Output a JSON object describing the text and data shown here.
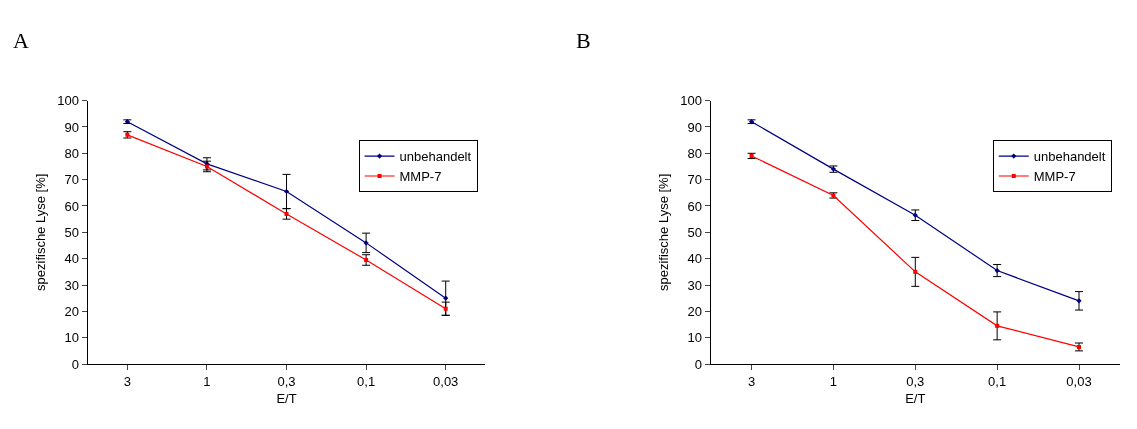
{
  "chart_data": [
    {
      "type": "line",
      "title": "A",
      "xlabel": "E/T",
      "ylabel": "spezifische Lyse [%]",
      "categories": [
        "3",
        "1",
        "0,3",
        "0,1",
        "0,03"
      ],
      "ylim": [
        0,
        100
      ],
      "yticks": [
        0,
        10,
        20,
        30,
        40,
        50,
        60,
        70,
        80,
        90,
        100
      ],
      "grid": false,
      "legend": "top right",
      "line_style": "solid",
      "series": [
        {
          "name": "unbehandelt",
          "color": "#000080",
          "marker": "diamond",
          "values": [
            92,
            76,
            65.5,
            46,
            25
          ],
          "errors": [
            0.7,
            2.3,
            6.5,
            3.7,
            6.5
          ]
        },
        {
          "name": "MMP-7",
          "color": "#ff0000",
          "marker": "square",
          "values": [
            87,
            75,
            57,
            39.5,
            21
          ],
          "errors": [
            1.2,
            2,
            2,
            2,
            2.5
          ]
        }
      ]
    },
    {
      "type": "line",
      "title": "B",
      "xlabel": "E/T",
      "ylabel": "spezifische Lyse [%]",
      "categories": [
        "3",
        "1",
        "0,3",
        "0,1",
        "0,03"
      ],
      "ylim": [
        0,
        100
      ],
      "yticks": [
        0,
        10,
        20,
        30,
        40,
        50,
        60,
        70,
        80,
        90,
        100
      ],
      "grid": false,
      "legend": "top right",
      "line_style": "solid",
      "series": [
        {
          "name": "unbehandelt",
          "color": "#000080",
          "marker": "diamond",
          "values": [
            92,
            74,
            56.5,
            35.5,
            24
          ],
          "errors": [
            0.7,
            1.2,
            2,
            2.3,
            3.5
          ]
        },
        {
          "name": "MMP-7",
          "color": "#ff0000",
          "marker": "square",
          "values": [
            79,
            64,
            35,
            14.5,
            6.5
          ],
          "errors": [
            1,
            1,
            5.5,
            5.3,
            1.5
          ]
        }
      ]
    }
  ]
}
